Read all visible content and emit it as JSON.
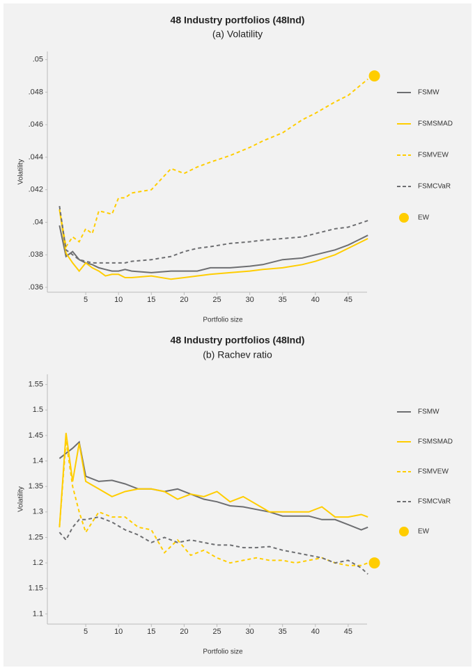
{
  "chart_data": [
    {
      "type": "line",
      "title": "48 Industry portfolios (48Ind)",
      "subtitle": "(a) Volatility",
      "x_label": "Portfolio size",
      "y_label": "Volatility",
      "xlim": [
        0,
        50
      ],
      "xticks": [
        5,
        10,
        15,
        20,
        25,
        30,
        35,
        40,
        45
      ],
      "ylim": [
        0.0357,
        0.0505
      ],
      "yticks": [
        {
          "value": 0.036,
          "label": ".036"
        },
        {
          "value": 0.038,
          "label": ".038"
        },
        {
          "value": 0.04,
          "label": ".04"
        },
        {
          "value": 0.042,
          "label": ".042"
        },
        {
          "value": 0.044,
          "label": ".044"
        },
        {
          "value": 0.046,
          "label": ".046"
        },
        {
          "value": 0.048,
          "label": ".048"
        },
        {
          "value": 0.05,
          "label": ".05"
        }
      ],
      "grid": false,
      "legend": "right",
      "series": [
        {
          "name": "FSMW",
          "color": "#6d6e71",
          "style": "solid",
          "x": [
            1,
            2,
            3,
            4,
            5,
            6,
            7,
            8,
            9,
            10,
            11,
            12,
            15,
            18,
            20,
            22,
            24,
            27,
            30,
            32,
            35,
            38,
            40,
            43,
            45,
            48
          ],
          "values": [
            0.0398,
            0.0379,
            0.0382,
            0.0377,
            0.0375,
            0.0374,
            0.0372,
            0.0371,
            0.037,
            0.037,
            0.0371,
            0.037,
            0.0369,
            0.037,
            0.037,
            0.037,
            0.0372,
            0.0372,
            0.0373,
            0.0374,
            0.0377,
            0.0378,
            0.038,
            0.0383,
            0.0386,
            0.0392
          ]
        },
        {
          "name": "FSMSMAD",
          "color": "#ffcd00",
          "style": "solid",
          "x": [
            1,
            2,
            3,
            4,
            5,
            6,
            7,
            8,
            9,
            10,
            11,
            12,
            15,
            18,
            20,
            22,
            24,
            27,
            30,
            32,
            35,
            38,
            40,
            43,
            45,
            48
          ],
          "values": [
            0.0408,
            0.0381,
            0.0375,
            0.037,
            0.0375,
            0.0372,
            0.037,
            0.0367,
            0.0368,
            0.0368,
            0.0366,
            0.0366,
            0.0367,
            0.0365,
            0.0366,
            0.0367,
            0.0368,
            0.0369,
            0.037,
            0.0371,
            0.0372,
            0.0374,
            0.0376,
            0.038,
            0.0384,
            0.039
          ]
        },
        {
          "name": "FSMVEW",
          "color": "#ffcd00",
          "style": "dashed",
          "x": [
            1,
            2,
            3,
            4,
            5,
            6,
            7,
            8,
            9,
            10,
            11,
            12,
            15,
            18,
            20,
            22,
            24,
            27,
            30,
            32,
            35,
            38,
            40,
            43,
            45,
            48
          ],
          "values": [
            0.0408,
            0.0385,
            0.0391,
            0.0388,
            0.0396,
            0.0393,
            0.0407,
            0.0406,
            0.0405,
            0.0415,
            0.0415,
            0.0418,
            0.042,
            0.0433,
            0.043,
            0.0434,
            0.0437,
            0.0441,
            0.0446,
            0.045,
            0.0455,
            0.0463,
            0.0467,
            0.0474,
            0.0478,
            0.0488
          ]
        },
        {
          "name": "FSMCVaR",
          "color": "#6d6e71",
          "style": "dashed",
          "x": [
            1,
            2,
            3,
            4,
            5,
            6,
            7,
            8,
            9,
            10,
            11,
            12,
            15,
            18,
            20,
            22,
            24,
            27,
            30,
            32,
            35,
            38,
            40,
            43,
            45,
            48
          ],
          "values": [
            0.041,
            0.0383,
            0.038,
            0.0377,
            0.0376,
            0.0375,
            0.0375,
            0.0375,
            0.0375,
            0.0375,
            0.0375,
            0.0376,
            0.0377,
            0.0379,
            0.0382,
            0.0384,
            0.0385,
            0.0387,
            0.0388,
            0.0389,
            0.039,
            0.0391,
            0.0393,
            0.0396,
            0.0397,
            0.0401
          ]
        },
        {
          "name": "EW",
          "color": "#ffcd00",
          "style": "marker",
          "x": [
            49
          ],
          "values": [
            0.049
          ]
        }
      ]
    },
    {
      "type": "line",
      "title": "48 Industry portfolios (48Ind)",
      "subtitle": "(b) Rachev ratio",
      "x_label": "Portfolio size",
      "y_label": "Volatility",
      "xlim": [
        0,
        50
      ],
      "xticks": [
        5,
        10,
        15,
        20,
        25,
        30,
        35,
        40,
        45
      ],
      "ylim": [
        1.08,
        1.57
      ],
      "yticks": [
        1.1,
        1.15,
        1.2,
        1.25,
        1.3,
        1.35,
        1.4,
        1.45,
        {
          "value": 1.5,
          "label": "1.5"
        },
        1.55
      ],
      "grid": false,
      "legend": "right",
      "series": [
        {
          "name": "FSMW",
          "color": "#6d6e71",
          "style": "solid",
          "x": [
            1,
            2,
            3,
            4,
            5,
            7,
            9,
            11,
            13,
            15,
            17,
            19,
            21,
            23,
            25,
            27,
            29,
            31,
            33,
            35,
            37,
            39,
            41,
            43,
            45,
            47,
            48
          ],
          "values": [
            1.405,
            1.415,
            1.425,
            1.437,
            1.37,
            1.36,
            1.362,
            1.355,
            1.345,
            1.345,
            1.34,
            1.345,
            1.335,
            1.325,
            1.32,
            1.312,
            1.31,
            1.305,
            1.3,
            1.292,
            1.292,
            1.292,
            1.285,
            1.285,
            1.275,
            1.265,
            1.27
          ]
        },
        {
          "name": "FSMSMAD",
          "color": "#ffcd00",
          "style": "solid",
          "x": [
            1,
            2,
            3,
            4,
            5,
            7,
            9,
            11,
            13,
            15,
            17,
            19,
            21,
            23,
            25,
            27,
            29,
            31,
            33,
            35,
            37,
            39,
            41,
            43,
            45,
            47,
            48
          ],
          "values": [
            1.27,
            1.455,
            1.36,
            1.435,
            1.36,
            1.345,
            1.33,
            1.34,
            1.345,
            1.345,
            1.34,
            1.325,
            1.335,
            1.33,
            1.34,
            1.32,
            1.33,
            1.315,
            1.3,
            1.3,
            1.3,
            1.3,
            1.31,
            1.29,
            1.29,
            1.295,
            1.29
          ]
        },
        {
          "name": "FSMVEW",
          "color": "#ffcd00",
          "style": "dashed",
          "x": [
            1,
            2,
            3,
            4,
            5,
            7,
            9,
            11,
            13,
            15,
            17,
            19,
            21,
            23,
            25,
            27,
            29,
            31,
            33,
            35,
            37,
            39,
            41,
            43,
            45,
            47,
            48
          ],
          "values": [
            1.27,
            1.44,
            1.35,
            1.3,
            1.26,
            1.3,
            1.29,
            1.29,
            1.27,
            1.265,
            1.22,
            1.245,
            1.215,
            1.225,
            1.21,
            1.2,
            1.205,
            1.21,
            1.205,
            1.205,
            1.2,
            1.205,
            1.21,
            1.2,
            1.195,
            1.195,
            1.2
          ]
        },
        {
          "name": "FSMCVaR",
          "color": "#6d6e71",
          "style": "dashed",
          "x": [
            1,
            2,
            3,
            4,
            5,
            7,
            9,
            11,
            13,
            15,
            17,
            19,
            21,
            23,
            25,
            27,
            29,
            31,
            33,
            35,
            37,
            39,
            41,
            43,
            45,
            47,
            48
          ],
          "values": [
            1.26,
            1.245,
            1.27,
            1.285,
            1.285,
            1.29,
            1.28,
            1.265,
            1.255,
            1.24,
            1.25,
            1.24,
            1.245,
            1.24,
            1.235,
            1.235,
            1.23,
            1.23,
            1.232,
            1.225,
            1.22,
            1.215,
            1.21,
            1.2,
            1.205,
            1.19,
            1.178
          ]
        },
        {
          "name": "EW",
          "color": "#ffcd00",
          "style": "marker",
          "x": [
            49
          ],
          "values": [
            1.2
          ]
        }
      ]
    }
  ]
}
